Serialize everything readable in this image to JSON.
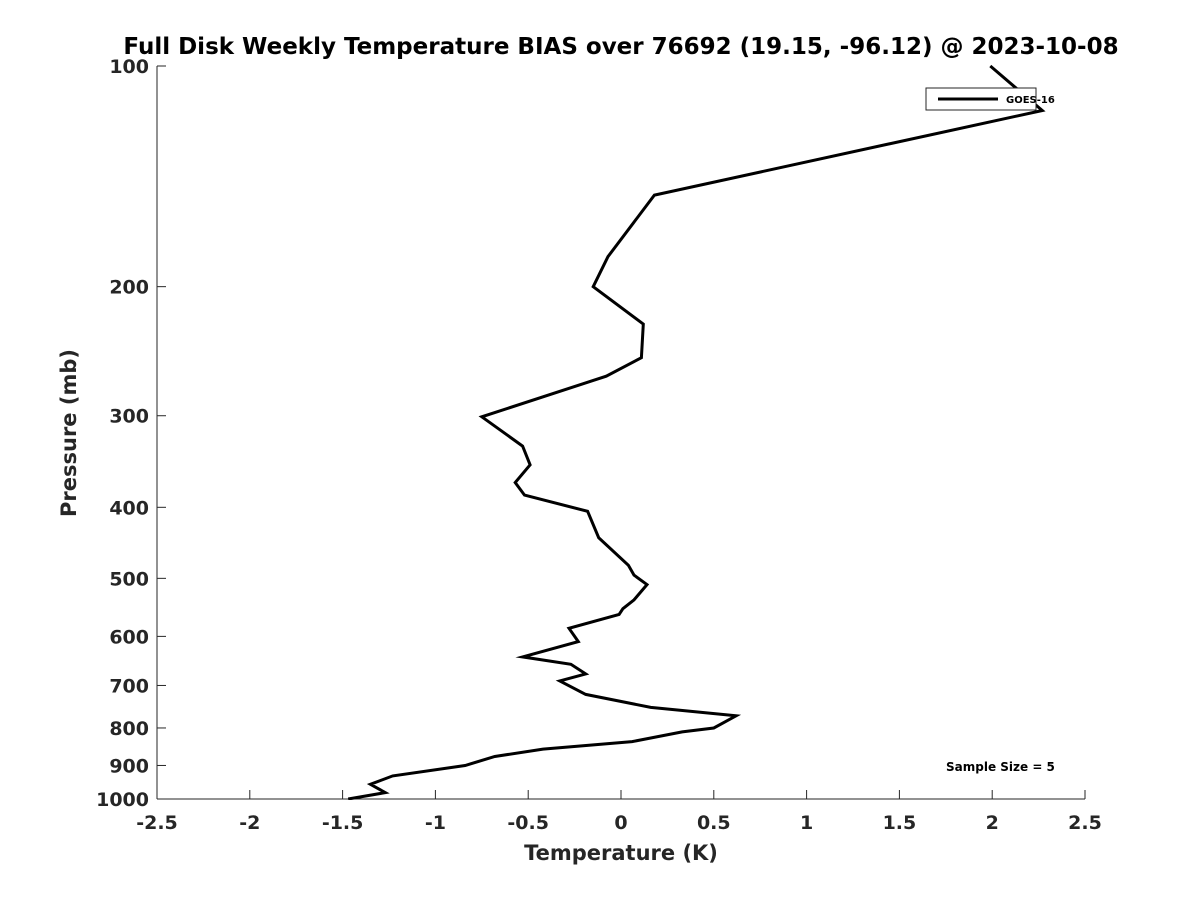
{
  "chart_data": {
    "type": "line",
    "title": "Full Disk Weekly Temperature BIAS over 76692 (19.15, -96.12) @ 2023-10-08",
    "xlabel": "Temperature (K)",
    "ylabel": "Pressure (mb)",
    "xlim": [
      -2.5,
      2.5
    ],
    "ylim": [
      100,
      1000
    ],
    "y_scale": "log",
    "y_reversed": true,
    "x_ticks": [
      "-2.5",
      "-2",
      "-1.5",
      "-1",
      "-0.5",
      "0",
      "0.5",
      "1",
      "1.5",
      "2",
      "2.5"
    ],
    "x_tick_values": [
      -2.5,
      -2,
      -1.5,
      -1,
      -0.5,
      0,
      0.5,
      1,
      1.5,
      2,
      2.5
    ],
    "y_ticks": [
      "100",
      "200",
      "300",
      "400",
      "500",
      "600",
      "700",
      "800",
      "900",
      "1000"
    ],
    "y_tick_values": [
      100,
      200,
      300,
      400,
      500,
      600,
      700,
      800,
      900,
      1000
    ],
    "grid": false,
    "legend_position": "top-right",
    "annotation": "Sample Size = 5",
    "series": [
      {
        "name": "GOES-16",
        "color": "#000000",
        "x": [
          1.99,
          2.27,
          0.18,
          -0.07,
          -0.15,
          0.12,
          0.11,
          -0.08,
          -0.75,
          -0.53,
          -0.49,
          -0.57,
          -0.52,
          -0.18,
          -0.12,
          0.04,
          0.07,
          0.14,
          0.07,
          0.01,
          -0.01,
          -0.28,
          -0.23,
          -0.53,
          -0.27,
          -0.19,
          -0.33,
          -0.19,
          0.16,
          0.62,
          0.56,
          0.5,
          0.33,
          0.06,
          -0.42,
          -0.68,
          -0.84,
          -1.23,
          -1.35,
          -1.27,
          -1.47
        ],
        "y": [
          100,
          115,
          150,
          182,
          200,
          225,
          250,
          265,
          301,
          330,
          350,
          370,
          385,
          405,
          440,
          480,
          495,
          510,
          535,
          550,
          560,
          585,
          610,
          640,
          655,
          675,
          690,
          720,
          750,
          770,
          785,
          800,
          810,
          835,
          855,
          875,
          900,
          930,
          955,
          980,
          1000
        ]
      }
    ]
  }
}
